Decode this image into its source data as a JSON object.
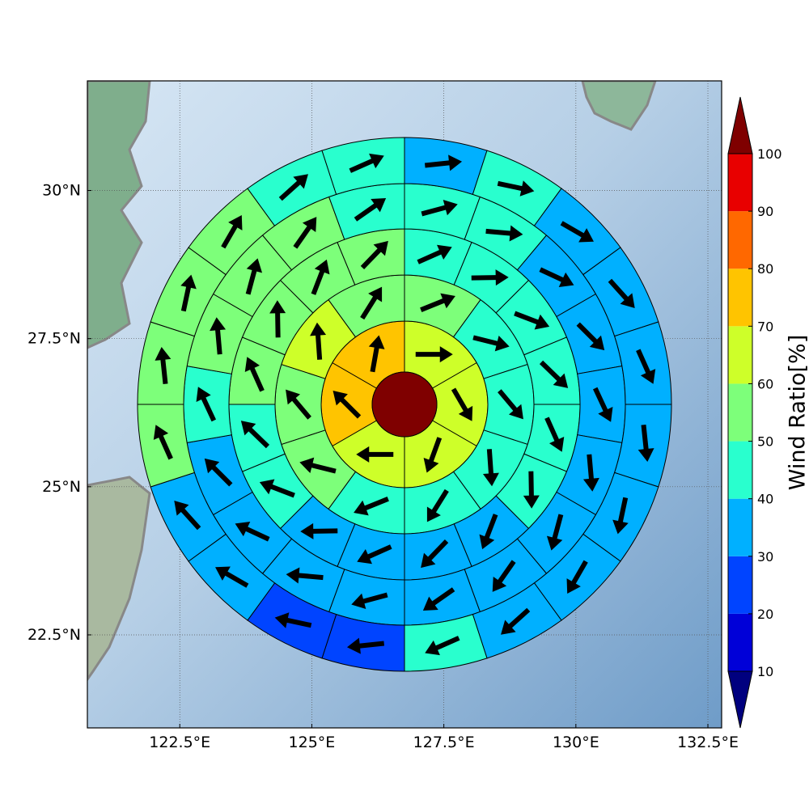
{
  "chart_data": {
    "type": "polar_grid",
    "xlim": [
      120.75,
      132.76
    ],
    "ylim": [
      20.93,
      31.85
    ],
    "xticks": [
      {
        "value": 122.5,
        "label": "122.5°E"
      },
      {
        "value": 125,
        "label": "125°E"
      },
      {
        "value": 127.5,
        "label": "127.5°E"
      },
      {
        "value": 130,
        "label": "130°E"
      },
      {
        "value": 132.5,
        "label": "132.5°E"
      }
    ],
    "yticks": [
      {
        "value": 22.5,
        "label": "22.5°N"
      },
      {
        "value": 25,
        "label": "25°N"
      },
      {
        "value": 27.5,
        "label": "27.5°N"
      },
      {
        "value": 30,
        "label": "30°N"
      }
    ],
    "grid": true,
    "center_value": 105,
    "rings": [
      {
        "values": [
          65,
          65,
          65,
          63,
          75,
          75
        ],
        "directions": [
          0,
          -60,
          -110,
          180,
          135,
          80
        ]
      },
      {
        "values": [
          55,
          45,
          45,
          45,
          45,
          42,
          52,
          55,
          62,
          55
        ],
        "directions": [
          22,
          -14,
          -50,
          -86,
          -122,
          -158,
          166,
          130,
          94,
          58
        ]
      },
      {
        "values": [
          45,
          45,
          45,
          45,
          45,
          45,
          35,
          35,
          35,
          35,
          45,
          45,
          55,
          55,
          55,
          55
        ],
        "directions": [
          24,
          1,
          -21,
          -44,
          -66,
          -89,
          -111,
          -134,
          -156,
          -179,
          159,
          136,
          114,
          91,
          69,
          46
        ]
      },
      {
        "values": [
          45,
          45,
          35,
          35,
          35,
          35,
          35,
          35,
          35,
          35,
          35,
          35,
          35,
          45,
          55,
          55,
          55,
          45
        ],
        "directions": [
          15,
          -5,
          -25,
          -45,
          -65,
          -85,
          -105,
          -125,
          -145,
          -165,
          175,
          155,
          135,
          115,
          95,
          75,
          55,
          35
        ]
      },
      {
        "values": [
          35,
          45,
          35,
          35,
          35,
          35,
          35,
          35,
          35,
          45,
          25,
          25,
          35,
          35,
          55,
          55,
          55,
          55,
          45,
          45
        ],
        "directions": [
          6,
          -12,
          -30,
          -48,
          -66,
          -84,
          -102,
          -120,
          -138,
          -156,
          -174,
          168,
          150,
          132,
          114,
          96,
          78,
          60,
          42,
          24
        ]
      }
    ],
    "colorbar": {
      "label": "Wind Ratio[%]",
      "ticks": [
        10,
        20,
        30,
        40,
        50,
        60,
        70,
        80,
        90,
        100
      ],
      "colors": [
        "#00007f",
        "#0000d8",
        "#0044ff",
        "#00b0ff",
        "#29ffce",
        "#7dff7a",
        "#ceff29",
        "#ffc400",
        "#ff6800",
        "#e80000",
        "#7f0000"
      ]
    }
  }
}
